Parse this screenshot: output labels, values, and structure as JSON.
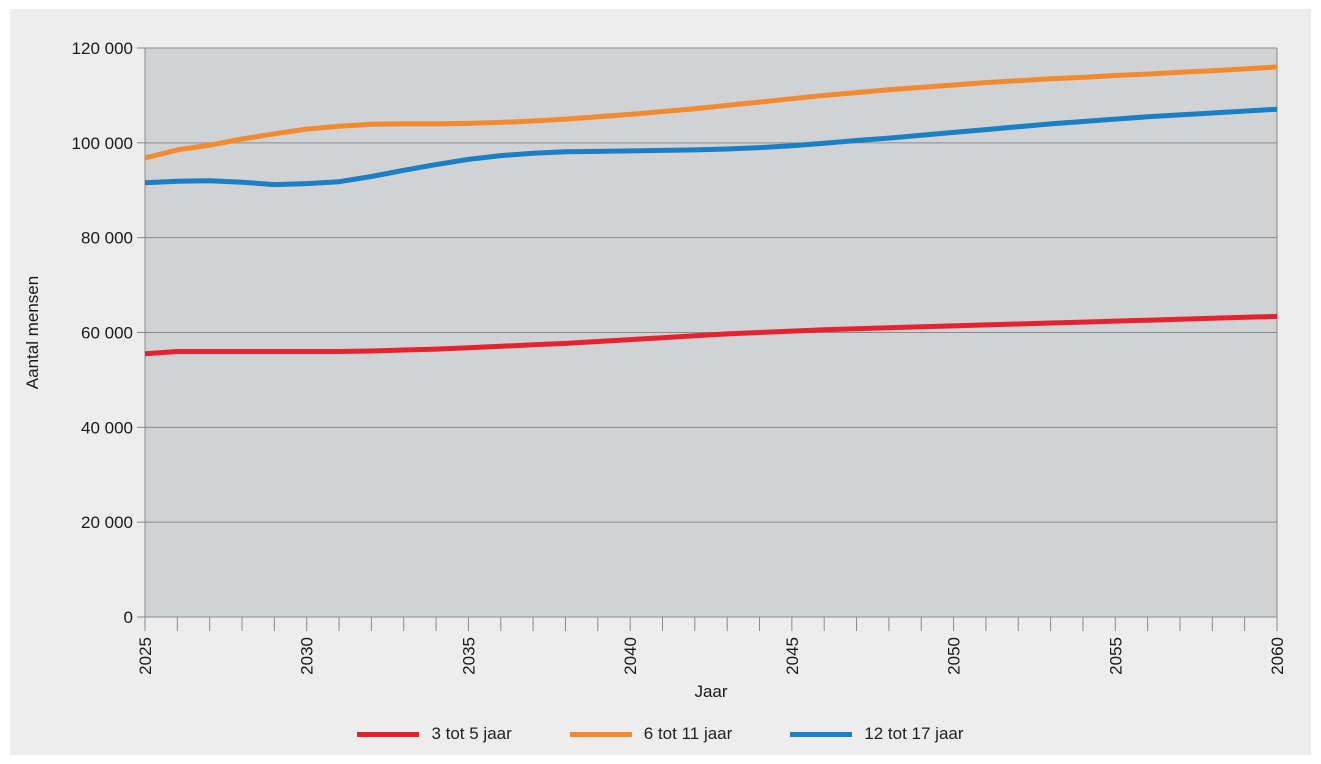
{
  "chart_data": {
    "type": "line",
    "title": "",
    "xlabel": "Jaar",
    "ylabel": "Aantal mensen",
    "xlim": [
      2025,
      2060
    ],
    "ylim": [
      0,
      120000
    ],
    "x_ticks": [
      "2025",
      "2030",
      "2035",
      "2040",
      "2045",
      "2050",
      "2055",
      "2060"
    ],
    "y_ticks": [
      "0",
      "20 000",
      "40 000",
      "60 000",
      "80 000",
      "100 000",
      "120 000"
    ],
    "y_tick_values": [
      0,
      20000,
      40000,
      60000,
      80000,
      100000,
      120000
    ],
    "x_tick_values": [
      2025,
      2030,
      2035,
      2040,
      2045,
      2050,
      2055,
      2060
    ],
    "grid": "horizontal",
    "legend_position": "bottom",
    "plot_background": "#d1d2d4",
    "x": [
      2025,
      2026,
      2027,
      2028,
      2029,
      2030,
      2031,
      2032,
      2033,
      2034,
      2035,
      2036,
      2037,
      2038,
      2039,
      2040,
      2041,
      2042,
      2043,
      2044,
      2045,
      2046,
      2047,
      2048,
      2049,
      2050,
      2051,
      2052,
      2053,
      2054,
      2055,
      2056,
      2057,
      2058,
      2059,
      2060
    ],
    "series": [
      {
        "name": "3 tot 5 jaar",
        "color": "#e52330",
        "values": [
          55500,
          56000,
          56000,
          56000,
          56000,
          56000,
          56000,
          56100,
          56300,
          56500,
          56800,
          57100,
          57400,
          57700,
          58100,
          58500,
          58900,
          59300,
          59700,
          60000,
          60300,
          60600,
          60800,
          61000,
          61200,
          61400,
          61600,
          61800,
          62000,
          62200,
          62400,
          62600,
          62800,
          63000,
          63200,
          63400
        ]
      },
      {
        "name": "6 tot 11 jaar",
        "color": "#f28a30",
        "values": [
          96800,
          98500,
          99500,
          100800,
          101900,
          102900,
          103500,
          103900,
          104000,
          104000,
          104100,
          104300,
          104600,
          105000,
          105500,
          106000,
          106600,
          107200,
          107900,
          108600,
          109300,
          110000,
          110600,
          111200,
          111700,
          112200,
          112700,
          113100,
          113500,
          113800,
          114200,
          114500,
          114900,
          115200,
          115600,
          116000
        ]
      },
      {
        "name": "12 tot 17 jaar",
        "color": "#1a7fc4",
        "values": [
          91600,
          91900,
          92000,
          91700,
          91200,
          91400,
          91800,
          92900,
          94200,
          95400,
          96500,
          97300,
          97800,
          98100,
          98200,
          98300,
          98400,
          98500,
          98700,
          99000,
          99400,
          99900,
          100500,
          101000,
          101600,
          102200,
          102800,
          103400,
          104000,
          104500,
          105000,
          105500,
          105900,
          106300,
          106700,
          107100
        ]
      }
    ]
  }
}
